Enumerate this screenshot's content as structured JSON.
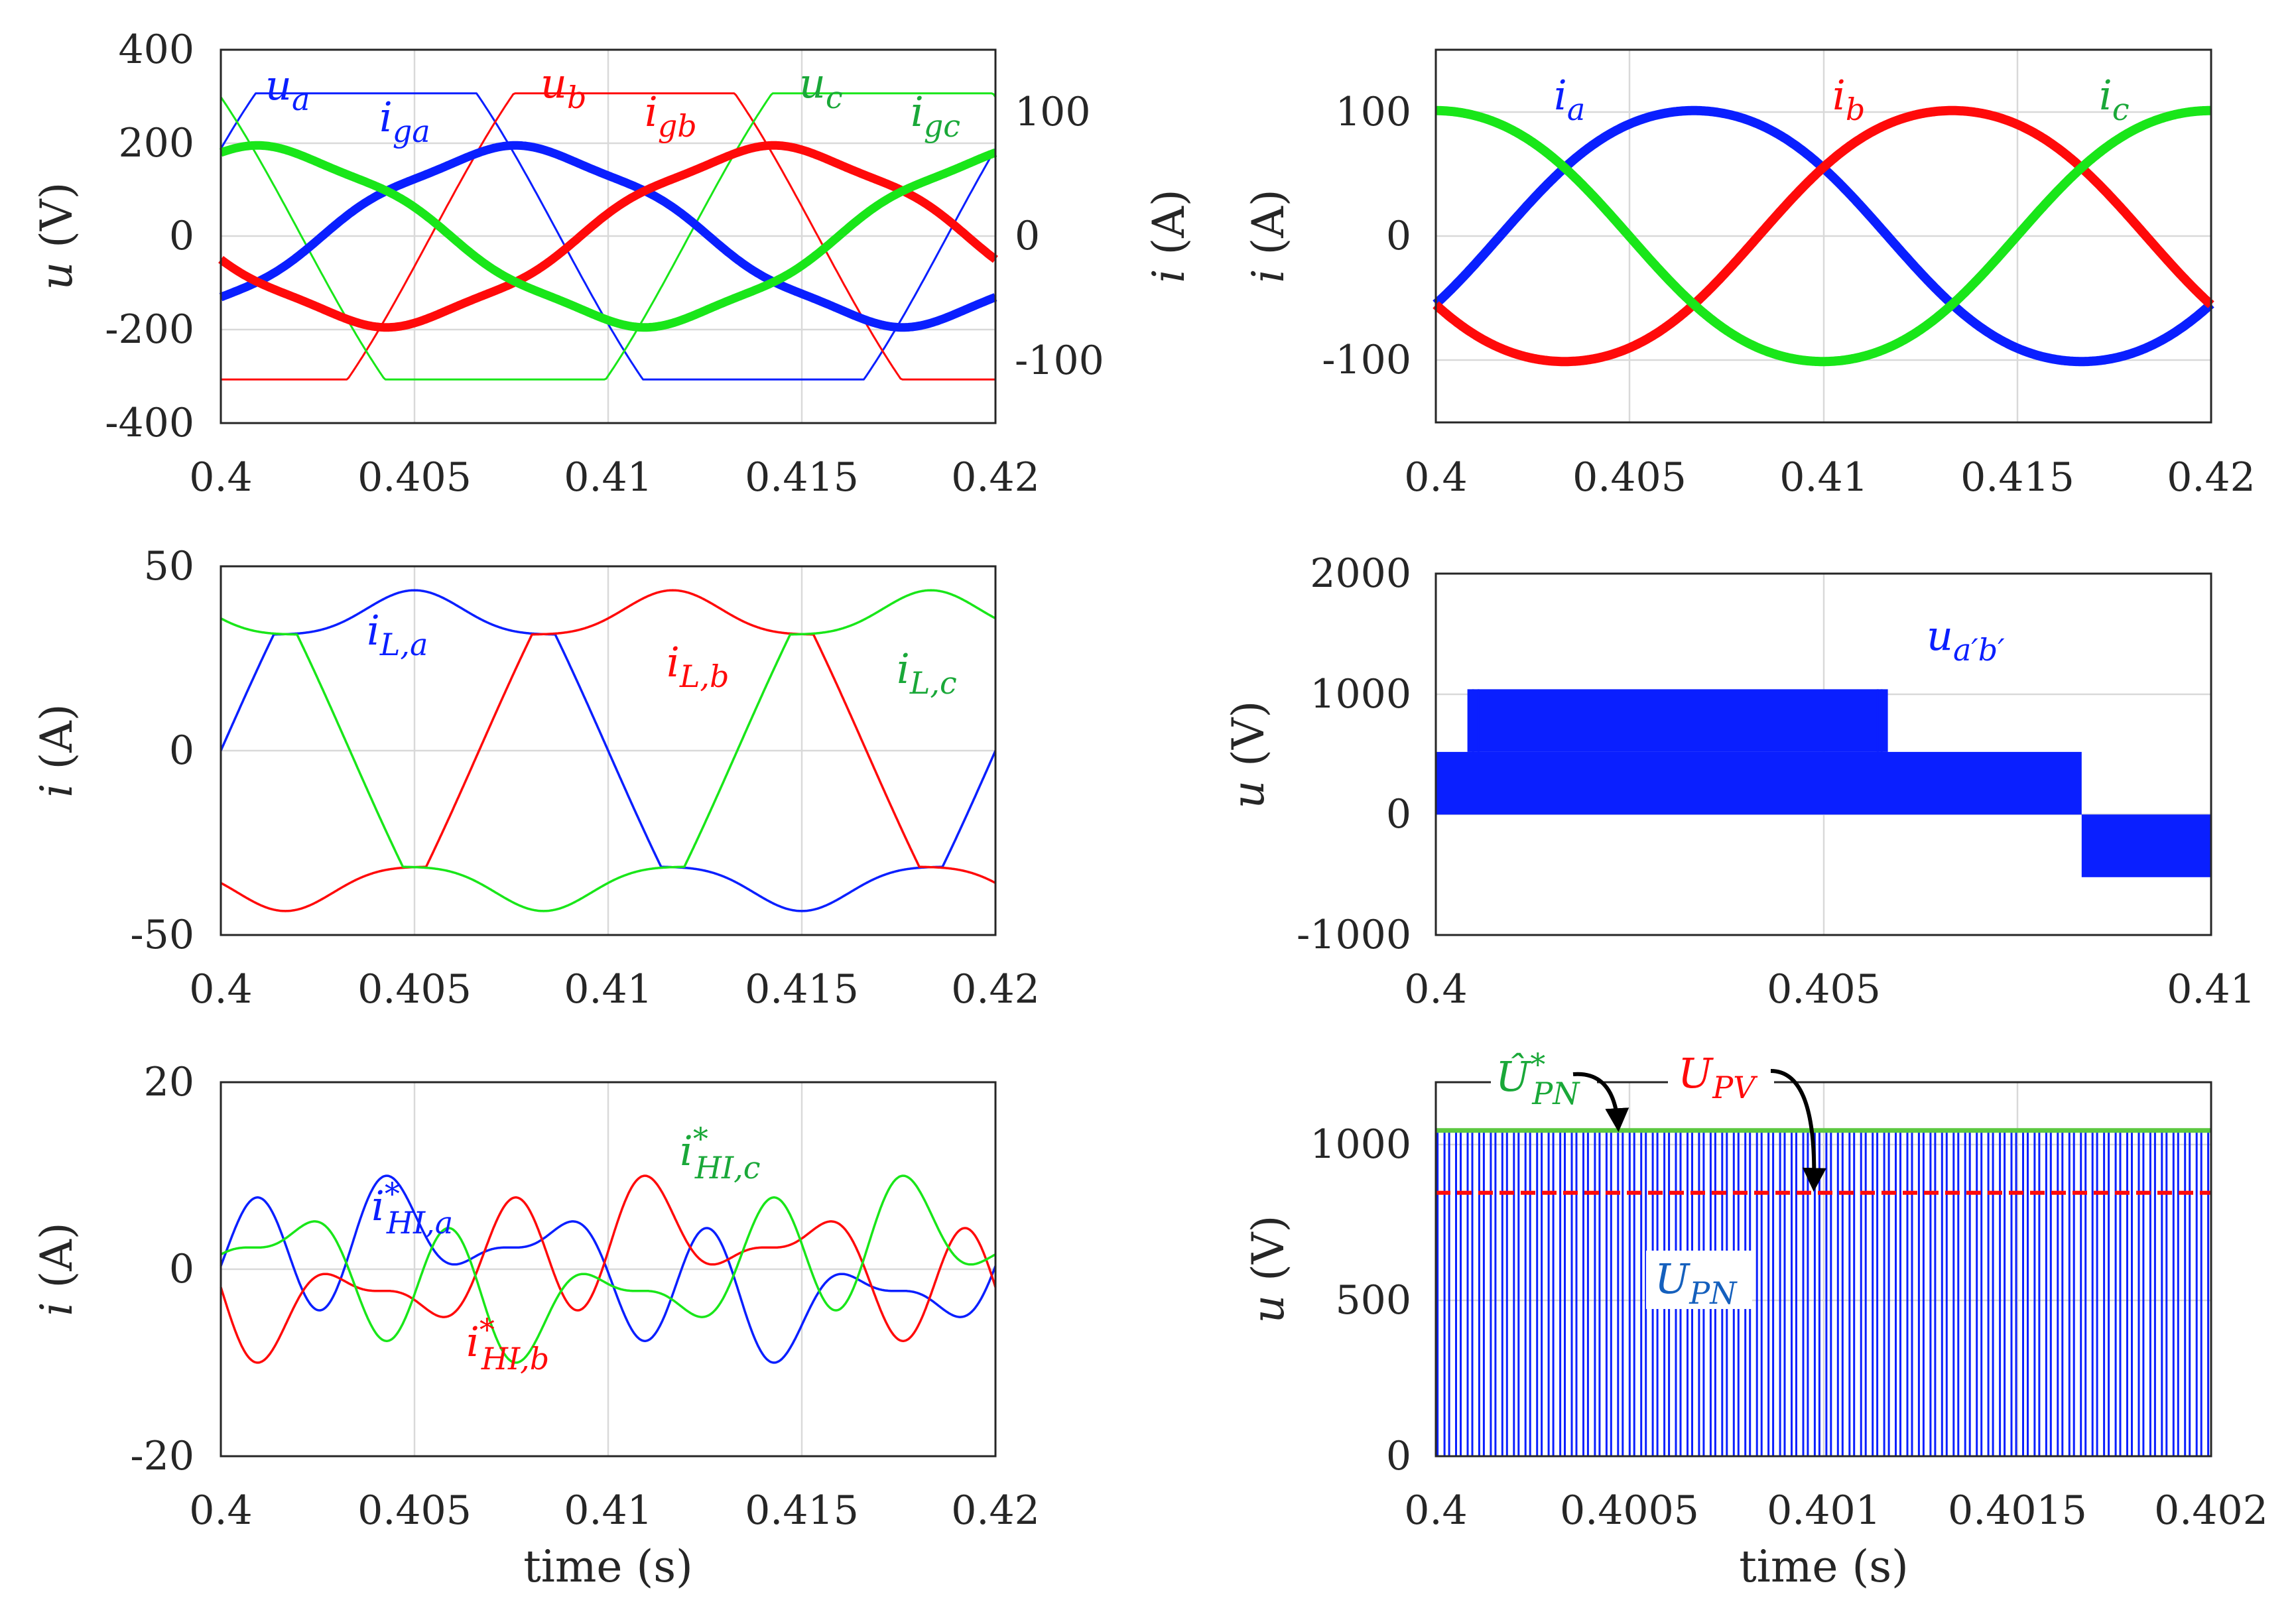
{
  "colors": {
    "blue": "#0a1fff",
    "red": "#ff0a0a",
    "green": "#19e619",
    "dark_green": "#1aa839",
    "mid_blue": "#1560bd",
    "axis": "#262626",
    "grid": "#d9d9d9",
    "arrow": "#000000"
  },
  "chart_data": [
    {
      "id": "p1",
      "type": "line",
      "xlabel": "",
      "ylabel": {
        "main": "u",
        "unit": "(V)"
      },
      "ylabel_right": {
        "main": "i",
        "unit": "(A)"
      },
      "xlim": [
        0.4,
        0.42
      ],
      "ylim": [
        -400,
        400
      ],
      "ylim_right": [
        -150,
        150
      ],
      "xticks": [
        "0.4",
        "0.405",
        "0.41",
        "0.415",
        "0.42"
      ],
      "yticks": [
        "400",
        "200",
        "0",
        "-200",
        "-400"
      ],
      "yticks_right": [
        "100",
        "0",
        "-100"
      ],
      "series_description": "Thick: grid voltages u_a, u_b, u_c (~187 V amplitude, 50 Hz). Thin: grid currents i_ga, i_gb, i_gc (~115 A, flat-topped).",
      "labels": [
        {
          "main": "u",
          "sub": "a",
          "color": "blue"
        },
        {
          "main": "i",
          "sub": "ga",
          "color": "blue"
        },
        {
          "main": "u",
          "sub": "b",
          "color": "red"
        },
        {
          "main": "i",
          "sub": "gb",
          "color": "red"
        },
        {
          "main": "u",
          "sub": "c",
          "color": "dark_green"
        },
        {
          "main": "i",
          "sub": "gc",
          "color": "dark_green"
        }
      ]
    },
    {
      "id": "p2",
      "type": "line",
      "xlabel": "",
      "ylabel": {
        "main": "i",
        "unit": "(A)"
      },
      "xlim": [
        0.4,
        0.42
      ],
      "ylim": [
        -150,
        150
      ],
      "xticks": [
        "0.4",
        "0.405",
        "0.41",
        "0.415",
        "0.42"
      ],
      "yticks": [
        "100",
        "0",
        "-100"
      ],
      "series_description": "Load/inverter currents i_a, i_b, i_c, ~104 A amplitude sinusoids.",
      "labels": [
        {
          "main": "i",
          "sub": "a",
          "color": "blue"
        },
        {
          "main": "i",
          "sub": "b",
          "color": "red"
        },
        {
          "main": "i",
          "sub": "c",
          "color": "dark_green"
        }
      ]
    },
    {
      "id": "p3",
      "type": "line",
      "xlabel": "",
      "ylabel": {
        "main": "i",
        "unit": "(A)"
      },
      "xlim": [
        0.4,
        0.42
      ],
      "ylim": [
        -50,
        50
      ],
      "xticks": [
        "0.4",
        "0.405",
        "0.41",
        "0.415",
        "0.42"
      ],
      "yticks": [
        "50",
        "0",
        "-50"
      ],
      "series_description": "Load currents i_L,a, i_L,b, i_L,c: quasi-square, plateaus near +32/-31 A with +44/-44 A bulges.",
      "labels": [
        {
          "main": "i",
          "sub": "L,a",
          "color": "blue"
        },
        {
          "main": "i",
          "sub": "L,b",
          "color": "red"
        },
        {
          "main": "i",
          "sub": "L,c",
          "color": "dark_green"
        }
      ]
    },
    {
      "id": "p4",
      "type": "line",
      "xlabel": "",
      "ylabel": {
        "main": "u",
        "unit": "(V)"
      },
      "xlim": [
        0.4,
        0.41
      ],
      "ylim": [
        -1000,
        2000
      ],
      "xticks": [
        "0.4",
        "0.405",
        "0.41"
      ],
      "yticks": [
        "2000",
        "1000",
        "0",
        "-1000"
      ],
      "series_description": "PWM line voltage u_a'b': switching 0/520 V with pulses to 1040 V (0.4004-0.4058 s), then 0/520 V until 0.4083 s, then 0/-520 V.",
      "levels": {
        "high": 1040,
        "mid": 520,
        "low": -520
      },
      "labels": [
        {
          "main": "u",
          "sub": "a′b′",
          "color": "blue"
        }
      ]
    },
    {
      "id": "p5",
      "type": "line",
      "xlabel": "",
      "ylabel": {
        "main": "i",
        "unit": "(A)"
      },
      "xlim": [
        0.4,
        0.42
      ],
      "ylim": [
        -20,
        20
      ],
      "xticks": [
        "0.4",
        "0.405",
        "0.41",
        "0.415",
        "0.42"
      ],
      "yticks": [
        "20",
        "0",
        "-20"
      ],
      "series_description": "Harmonic injection reference currents i*_HI,a, i*_HI,b, i*_HI,c, roughly ±11 A.",
      "labels": [
        {
          "main": "i",
          "sub": "HI,a",
          "sup": "*",
          "color": "blue"
        },
        {
          "main": "i",
          "sub": "HI,b",
          "sup": "*",
          "color": "red"
        },
        {
          "main": "i",
          "sub": "HI,c",
          "sup": "*",
          "color": "dark_green"
        }
      ]
    },
    {
      "id": "p6",
      "type": "line",
      "xlabel": "time (s)",
      "ylabel": {
        "main": "u",
        "unit": "(V)"
      },
      "xlim": [
        0.4,
        0.402
      ],
      "ylim": [
        0,
        1200
      ],
      "xticks": [
        "0.4",
        "0.4005",
        "0.401",
        "0.4015",
        "0.402"
      ],
      "yticks": [
        "1000",
        "500",
        "0"
      ],
      "series_description": "DC-link voltage U_PN switching between 0 and ~1040 V; estimated peak Û*_PN = 1045 V (green line); PV voltage U_PV = 845 V (red dashed).",
      "levels": {
        "U_PN_hat": 1045,
        "U_PV": 845
      },
      "labels": [
        {
          "main": "Û",
          "sub": "PN",
          "sup": "*",
          "color": "dark_green"
        },
        {
          "main": "U",
          "sub": "PV",
          "color": "red"
        },
        {
          "main": "U",
          "sub": "PN",
          "color": "mid_blue"
        }
      ]
    }
  ],
  "shared_xlabel": "time (s)"
}
